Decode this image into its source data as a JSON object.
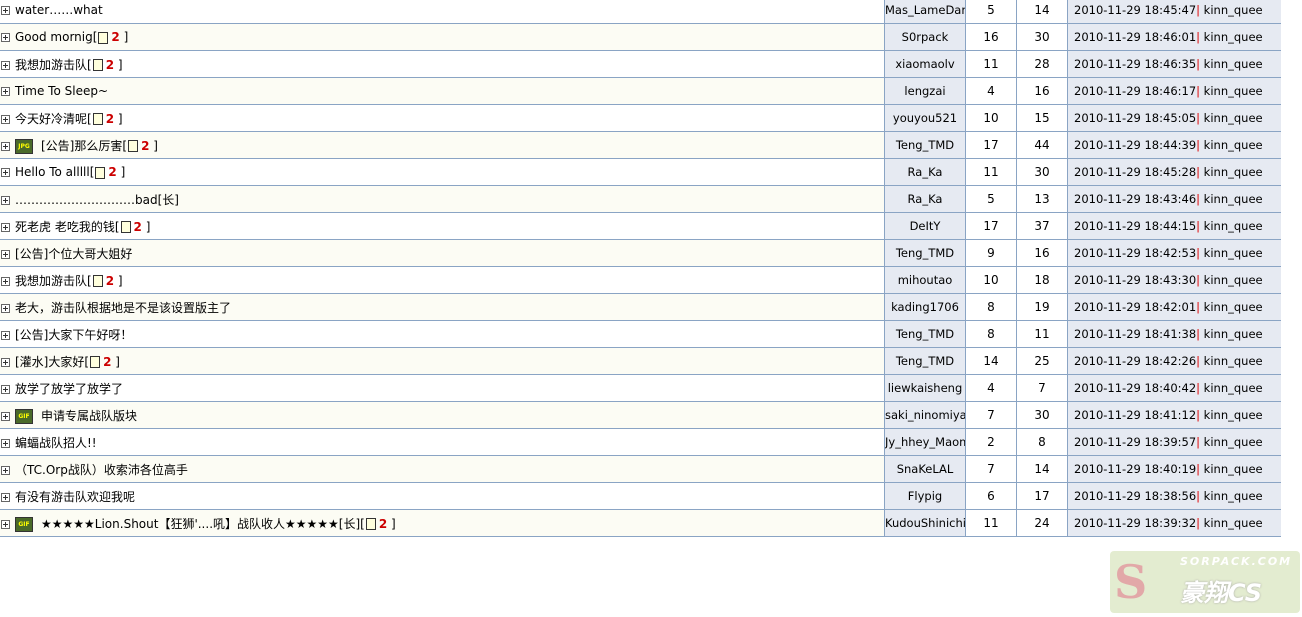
{
  "colors": {
    "border": "#8aa4c4",
    "cell_bg": "#e6eaf2",
    "page_link": "#cc0000"
  },
  "rows": [
    {
      "title": "water……what",
      "author": "Mas_LameDant",
      "replies": "5",
      "views": "14",
      "last_time": "2010-11-29 18:45:47",
      "last_user": "kinn_quee"
    },
    {
      "title": "Good mornig",
      "pages": "2",
      "author": "S0rpack",
      "replies": "16",
      "views": "30",
      "last_time": "2010-11-29 18:46:01",
      "last_user": "kinn_quee"
    },
    {
      "title": "我想加游击队",
      "pages": "2",
      "author": "xiaomaolv",
      "replies": "11",
      "views": "28",
      "last_time": "2010-11-29 18:46:35",
      "last_user": "kinn_quee"
    },
    {
      "title": "Time To Sleep~",
      "author": "lengzai",
      "replies": "4",
      "views": "16",
      "last_time": "2010-11-29 18:46:17",
      "last_user": "kinn_quee"
    },
    {
      "title": "今天好冷清呢",
      "pages": "2",
      "author": "youyou521",
      "replies": "10",
      "views": "15",
      "last_time": "2010-11-29 18:45:05",
      "last_user": "kinn_quee"
    },
    {
      "title": "[公告]那么厉害",
      "icon": "JPG",
      "pages": "2",
      "author": "Teng_TMD",
      "replies": "17",
      "views": "44",
      "last_time": "2010-11-29 18:44:39",
      "last_user": "kinn_quee"
    },
    {
      "title": "Hello To alllll",
      "pages": "2",
      "author": "Ra_Ka",
      "replies": "11",
      "views": "30",
      "last_time": "2010-11-29 18:45:28",
      "last_user": "kinn_quee"
    },
    {
      "title": "…………………………bad[长]",
      "author": "Ra_Ka",
      "replies": "5",
      "views": "13",
      "last_time": "2010-11-29 18:43:46",
      "last_user": "kinn_quee"
    },
    {
      "title": "死老虎 老吃我的钱",
      "pages": "2",
      "author": "DeItY",
      "replies": "17",
      "views": "37",
      "last_time": "2010-11-29 18:44:15",
      "last_user": "kinn_quee"
    },
    {
      "title": "[公告]个位大哥大姐好",
      "author": "Teng_TMD",
      "replies": "9",
      "views": "16",
      "last_time": "2010-11-29 18:42:53",
      "last_user": "kinn_quee"
    },
    {
      "title": "我想加游击队",
      "pages": "2",
      "author": "mihoutao",
      "replies": "10",
      "views": "18",
      "last_time": "2010-11-29 18:43:30",
      "last_user": "kinn_quee"
    },
    {
      "title": "老大，游击队根据地是不是该设置版主了",
      "author": "kading1706",
      "replies": "8",
      "views": "19",
      "last_time": "2010-11-29 18:42:01",
      "last_user": "kinn_quee"
    },
    {
      "title": "[公告]大家下午好呀！",
      "author": "Teng_TMD",
      "replies": "8",
      "views": "11",
      "last_time": "2010-11-29 18:41:38",
      "last_user": "kinn_quee"
    },
    {
      "title": "[灌水]大家好",
      "pages": "2",
      "author": "Teng_TMD",
      "replies": "14",
      "views": "25",
      "last_time": "2010-11-29 18:42:26",
      "last_user": "kinn_quee"
    },
    {
      "title": "放学了放学了放学了",
      "author": "liewkaisheng",
      "replies": "4",
      "views": "7",
      "last_time": "2010-11-29 18:40:42",
      "last_user": "kinn_quee"
    },
    {
      "title": "申请专属战队版块",
      "icon": "GIF",
      "author": "saki_ninomiya",
      "replies": "7",
      "views": "30",
      "last_time": "2010-11-29 18:41:12",
      "last_user": "kinn_quee"
    },
    {
      "title": "蝙蝠战队招人!!",
      "author": "Jy_hhey_Maom",
      "replies": "2",
      "views": "8",
      "last_time": "2010-11-29 18:39:57",
      "last_user": "kinn_quee"
    },
    {
      "title": "（TC.Orp战队）收索沛各位高手",
      "author": "SnaKeLAL",
      "replies": "7",
      "views": "14",
      "last_time": "2010-11-29 18:40:19",
      "last_user": "kinn_quee"
    },
    {
      "title": "有没有游击队欢迎我呢",
      "author": "Flypig",
      "replies": "6",
      "views": "17",
      "last_time": "2010-11-29 18:38:56",
      "last_user": "kinn_quee"
    },
    {
      "title": "★★★★★Lion.Shout【狂狮'....吼】战队收人★★★★★[长]",
      "icon": "GIF",
      "pages": "2",
      "author": "KudouShinichi",
      "replies": "11",
      "views": "24",
      "last_time": "2010-11-29 18:39:32",
      "last_user": "kinn_quee"
    }
  ],
  "logo": {
    "text": "SORPACK.COM",
    "sub": "豪翔CS"
  }
}
